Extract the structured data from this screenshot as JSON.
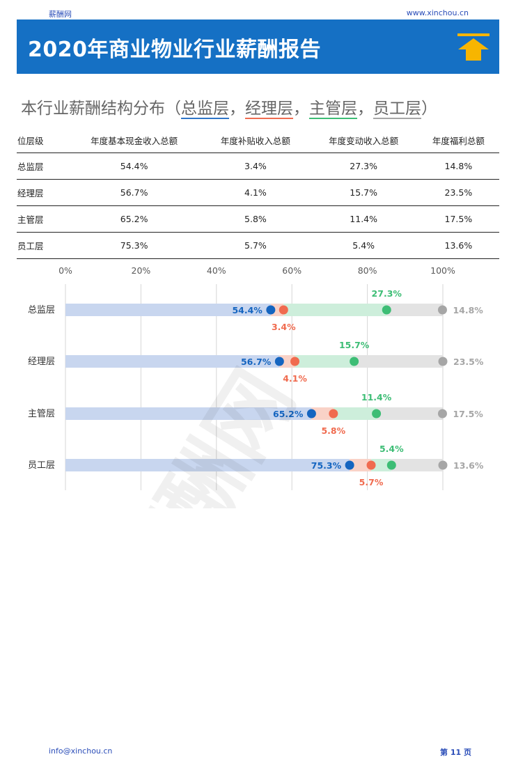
{
  "header": {
    "site_name": "薪酬网",
    "site_url": "www.xinchou.cn",
    "title": "2020年商业物业行业薪酬报告"
  },
  "section": {
    "title_prefix": "本行业薪酬结构分布（",
    "levels": [
      "总监层",
      "经理层",
      "主管层",
      "员工层"
    ],
    "sep": "，",
    "title_suffix": "）"
  },
  "table": {
    "headers": [
      "位层级",
      "年度基本现金收入总额",
      "年度补贴收入总额",
      "年度变动收入总额",
      "年度福利总额"
    ],
    "rows": [
      [
        "总监层",
        "54.4%",
        "3.4%",
        "27.3%",
        "14.8%"
      ],
      [
        "经理层",
        "56.7%",
        "4.1%",
        "15.7%",
        "23.5%"
      ],
      [
        "主管层",
        "65.2%",
        "5.8%",
        "11.4%",
        "17.5%"
      ],
      [
        "员工层",
        "75.3%",
        "5.7%",
        "5.4%",
        "13.6%"
      ]
    ]
  },
  "chart_data": {
    "type": "bar",
    "stacked": true,
    "orientation": "horizontal",
    "title": "",
    "xlabel": "",
    "ylabel": "",
    "xlim": [
      0,
      100
    ],
    "x_ticks": [
      "0%",
      "20%",
      "40%",
      "60%",
      "80%",
      "100%"
    ],
    "categories": [
      "总监层",
      "经理层",
      "主管层",
      "员工层"
    ],
    "series": [
      {
        "values": [
          54.4,
          56.7,
          65.2,
          75.3
        ],
        "labels": [
          "54.4%",
          "56.7%",
          "65.2%",
          "75.3%"
        ],
        "color": "#1565c0"
      },
      {
        "values": [
          3.4,
          4.1,
          5.8,
          5.7
        ],
        "labels": [
          "3.4%",
          "4.1%",
          "5.8%",
          "5.7%"
        ],
        "color": "#f06b4f"
      },
      {
        "values": [
          27.3,
          15.7,
          11.4,
          5.4
        ],
        "labels": [
          "27.3%",
          "15.7%",
          "11.4%",
          "5.4%"
        ],
        "color": "#3dbd75"
      },
      {
        "values": [
          14.8,
          23.5,
          17.5,
          13.6
        ],
        "labels": [
          "14.8%",
          "23.5%",
          "17.5%",
          "13.6%"
        ],
        "color": "#a6a6a6"
      }
    ],
    "grid": true,
    "legend": false
  },
  "watermark": "薪酬网",
  "colors": {
    "banner": "#1570c4",
    "icon": "#f7b500"
  },
  "footer": {
    "email": "info@xinchou.cn",
    "page": "第 11 页"
  }
}
